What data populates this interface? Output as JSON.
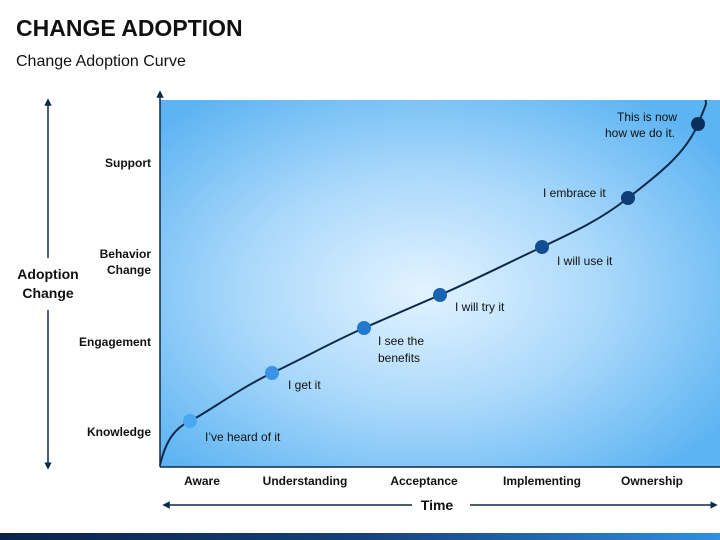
{
  "header": {
    "title": "CHANGE ADOPTION",
    "subtitle": "Change Adoption Curve"
  },
  "y_axis": {
    "label": [
      "Adoption",
      "Change"
    ],
    "levels": [
      [
        "Support"
      ],
      [
        "Behavior",
        "Change"
      ],
      [
        "Engagement"
      ],
      [
        "Knowledge"
      ]
    ]
  },
  "x_axis": {
    "label": "Time",
    "stages": [
      "Aware",
      "Understanding",
      "Acceptance",
      "Implementing",
      "Ownership"
    ]
  },
  "curve": {
    "points": [
      [
        "I’ve heard of it"
      ],
      [
        "I get it"
      ],
      [
        "I see the",
        "benefits"
      ],
      [
        "I will try it"
      ],
      [
        "I will use it"
      ],
      [
        "I embrace it"
      ],
      [
        "This is now",
        "how we do it."
      ]
    ]
  }
}
